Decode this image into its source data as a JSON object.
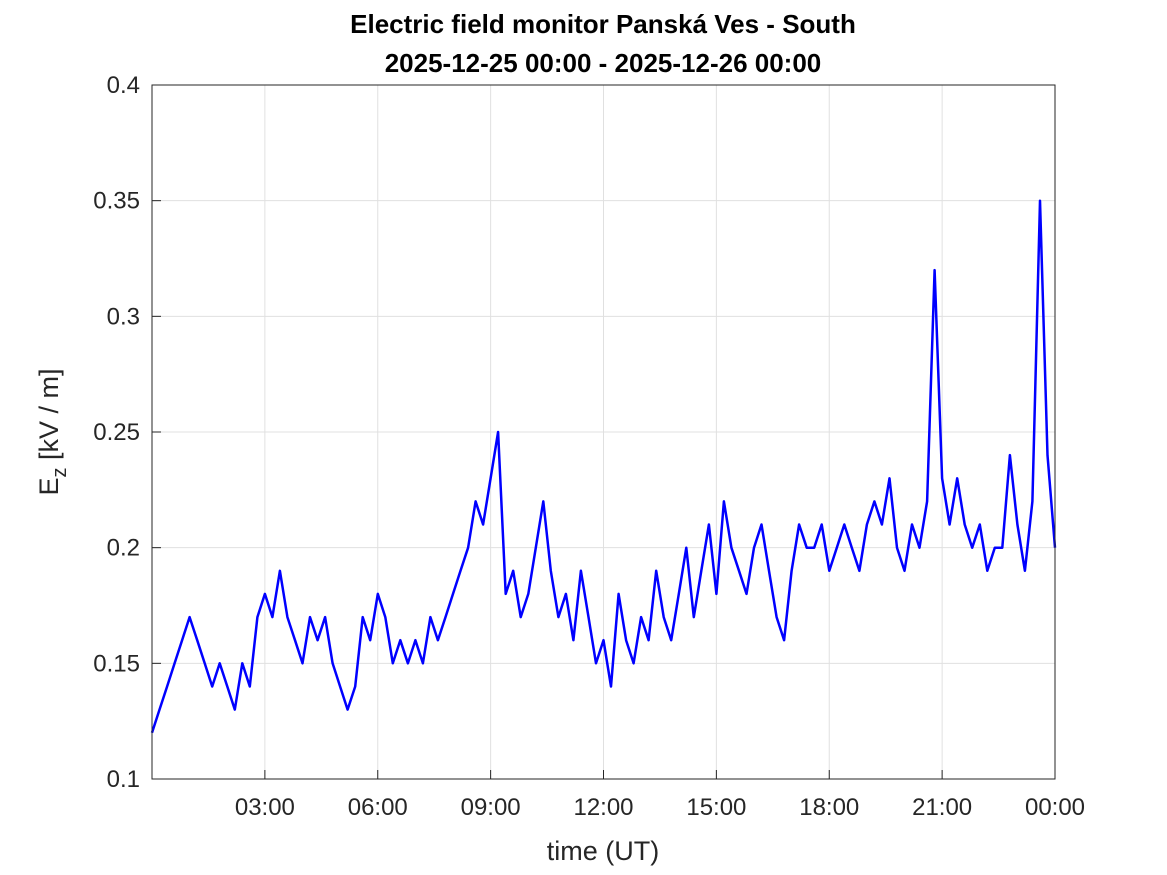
{
  "chart_data": {
    "type": "line",
    "title": "Electric field monitor Panská Ves - South",
    "subtitle": "2025-12-25 00:00 - 2025-12-26 00:00",
    "xlabel": "time (UT)",
    "ylabel": {
      "base": "E",
      "subscript": "z",
      "rest": " [kV / m]"
    },
    "xlim": [
      0,
      24
    ],
    "xticks": [
      {
        "value": 3,
        "label": "03:00"
      },
      {
        "value": 6,
        "label": "06:00"
      },
      {
        "value": 9,
        "label": "09:00"
      },
      {
        "value": 12,
        "label": "12:00"
      },
      {
        "value": 15,
        "label": "15:00"
      },
      {
        "value": 18,
        "label": "18:00"
      },
      {
        "value": 21,
        "label": "21:00"
      },
      {
        "value": 24,
        "label": "00:00"
      }
    ],
    "ylim": [
      0.1,
      0.4
    ],
    "yticks": [
      0.1,
      0.15,
      0.2,
      0.25,
      0.3,
      0.35,
      0.4
    ],
    "grid": true,
    "x": [
      0,
      0.2,
      0.4,
      0.6,
      0.8,
      1,
      1.2,
      1.4,
      1.6,
      1.8,
      2,
      2.2,
      2.4,
      2.6,
      2.8,
      3,
      3.2,
      3.4,
      3.6,
      3.8,
      4,
      4.2,
      4.4,
      4.6,
      4.8,
      5,
      5.2,
      5.4,
      5.6,
      5.8,
      6,
      6.2,
      6.4,
      6.6,
      6.8,
      7,
      7.2,
      7.4,
      7.6,
      7.8,
      8,
      8.2,
      8.4,
      8.6,
      8.8,
      9,
      9.2,
      9.4,
      9.6,
      9.8,
      10,
      10.2,
      10.4,
      10.6,
      10.8,
      11,
      11.2,
      11.4,
      11.6,
      11.8,
      12,
      12.2,
      12.4,
      12.6,
      12.8,
      13,
      13.2,
      13.4,
      13.6,
      13.8,
      14,
      14.2,
      14.4,
      14.6,
      14.8,
      15,
      15.2,
      15.4,
      15.6,
      15.8,
      16,
      16.2,
      16.4,
      16.6,
      16.8,
      17,
      17.2,
      17.4,
      17.6,
      17.8,
      18,
      18.2,
      18.4,
      18.6,
      18.8,
      19,
      19.2,
      19.4,
      19.6,
      19.8,
      20,
      20.2,
      20.4,
      20.6,
      20.8,
      21,
      21.2,
      21.4,
      21.6,
      21.8,
      22,
      22.2,
      22.4,
      22.6,
      22.8,
      23,
      23.2,
      23.4,
      23.6,
      23.8,
      24
    ],
    "series": [
      {
        "name": "Ez",
        "color": "#0000ff",
        "values": [
          0.12,
          0.13,
          0.14,
          0.15,
          0.16,
          0.17,
          0.16,
          0.15,
          0.14,
          0.15,
          0.14,
          0.13,
          0.15,
          0.14,
          0.17,
          0.18,
          0.17,
          0.19,
          0.17,
          0.16,
          0.15,
          0.17,
          0.16,
          0.17,
          0.15,
          0.14,
          0.13,
          0.14,
          0.17,
          0.16,
          0.18,
          0.17,
          0.15,
          0.16,
          0.15,
          0.16,
          0.15,
          0.17,
          0.16,
          0.17,
          0.18,
          0.19,
          0.2,
          0.22,
          0.21,
          0.23,
          0.25,
          0.18,
          0.19,
          0.17,
          0.18,
          0.2,
          0.22,
          0.19,
          0.17,
          0.18,
          0.16,
          0.19,
          0.17,
          0.15,
          0.16,
          0.14,
          0.18,
          0.16,
          0.15,
          0.17,
          0.16,
          0.19,
          0.17,
          0.16,
          0.18,
          0.2,
          0.17,
          0.19,
          0.21,
          0.18,
          0.22,
          0.2,
          0.19,
          0.18,
          0.2,
          0.21,
          0.19,
          0.17,
          0.16,
          0.19,
          0.21,
          0.2,
          0.2,
          0.21,
          0.19,
          0.2,
          0.21,
          0.2,
          0.19,
          0.21,
          0.22,
          0.21,
          0.23,
          0.2,
          0.19,
          0.21,
          0.2,
          0.22,
          0.32,
          0.23,
          0.21,
          0.23,
          0.21,
          0.2,
          0.21,
          0.19,
          0.2,
          0.2,
          0.24,
          0.21,
          0.19,
          0.22,
          0.35,
          0.24,
          0.2
        ]
      }
    ]
  }
}
